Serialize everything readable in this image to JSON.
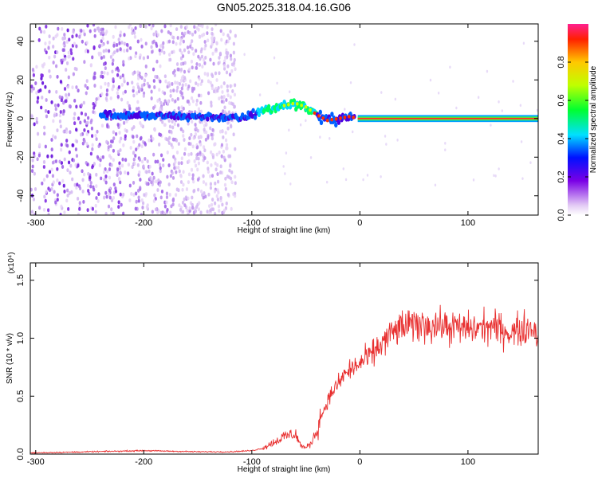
{
  "title": "GN05.2025.318.04.16.G06",
  "chart_data": [
    {
      "type": "heatmap",
      "title": "GN05.2025.318.04.16.G06",
      "xlabel": "Height of straight line (km)",
      "ylabel": "Frequency (Hz)",
      "xlim": [
        -305,
        165
      ],
      "ylim": [
        -50,
        49
      ],
      "x_ticks": [
        "-300",
        "-200",
        "-100",
        "0",
        "100"
      ],
      "y_ticks": [
        "-40",
        "-20",
        "0",
        "20",
        "40"
      ],
      "ridge": {
        "description": "Dominant frequency ridge",
        "x": [
          -240,
          -200,
          -160,
          -140,
          -110,
          -90,
          -75,
          -60,
          -50,
          -40,
          -30,
          -20,
          -10,
          0,
          50,
          100,
          160
        ],
        "y": [
          2,
          1.5,
          1,
          1,
          0,
          4,
          6,
          8,
          6,
          2,
          -1,
          0,
          1,
          0,
          0,
          0,
          0
        ]
      },
      "colorbar": {
        "label": "Normalized spectral amplitude",
        "range": [
          0,
          1
        ],
        "ticks": [
          "0.0",
          "0.2",
          "0.4",
          "0.6",
          "0.8"
        ]
      },
      "grid": false
    },
    {
      "type": "line",
      "xlabel": "Height of straight line (km)",
      "ylabel": "SNR (10 * v/v)",
      "scale_label": "(x10⁴)",
      "xlim": [
        -305,
        165
      ],
      "ylim": [
        0,
        1.65
      ],
      "x_ticks": [
        "-300",
        "-200",
        "-100",
        "0",
        "100"
      ],
      "y_ticks": [
        "0.0",
        "0.5",
        "1.0",
        "1.5"
      ],
      "series": [
        {
          "color": "#e83030",
          "x": [
            -305,
            -250,
            -200,
            -150,
            -120,
            -100,
            -90,
            -80,
            -70,
            -60,
            -55,
            -50,
            -45,
            -40,
            -35,
            -30,
            -25,
            -20,
            -15,
            -10,
            0,
            10,
            20,
            30,
            40,
            60,
            80,
            100,
            120,
            140,
            160,
            165
          ],
          "y": [
            0.01,
            0.02,
            0.03,
            0.02,
            0.02,
            0.03,
            0.05,
            0.1,
            0.15,
            0.18,
            0.08,
            0.05,
            0.1,
            0.2,
            0.35,
            0.45,
            0.55,
            0.6,
            0.68,
            0.72,
            0.78,
            0.85,
            0.95,
            1.05,
            1.1,
            1.12,
            1.1,
            1.08,
            1.1,
            1.05,
            1.1,
            1.0
          ]
        }
      ],
      "grid": false
    }
  ]
}
